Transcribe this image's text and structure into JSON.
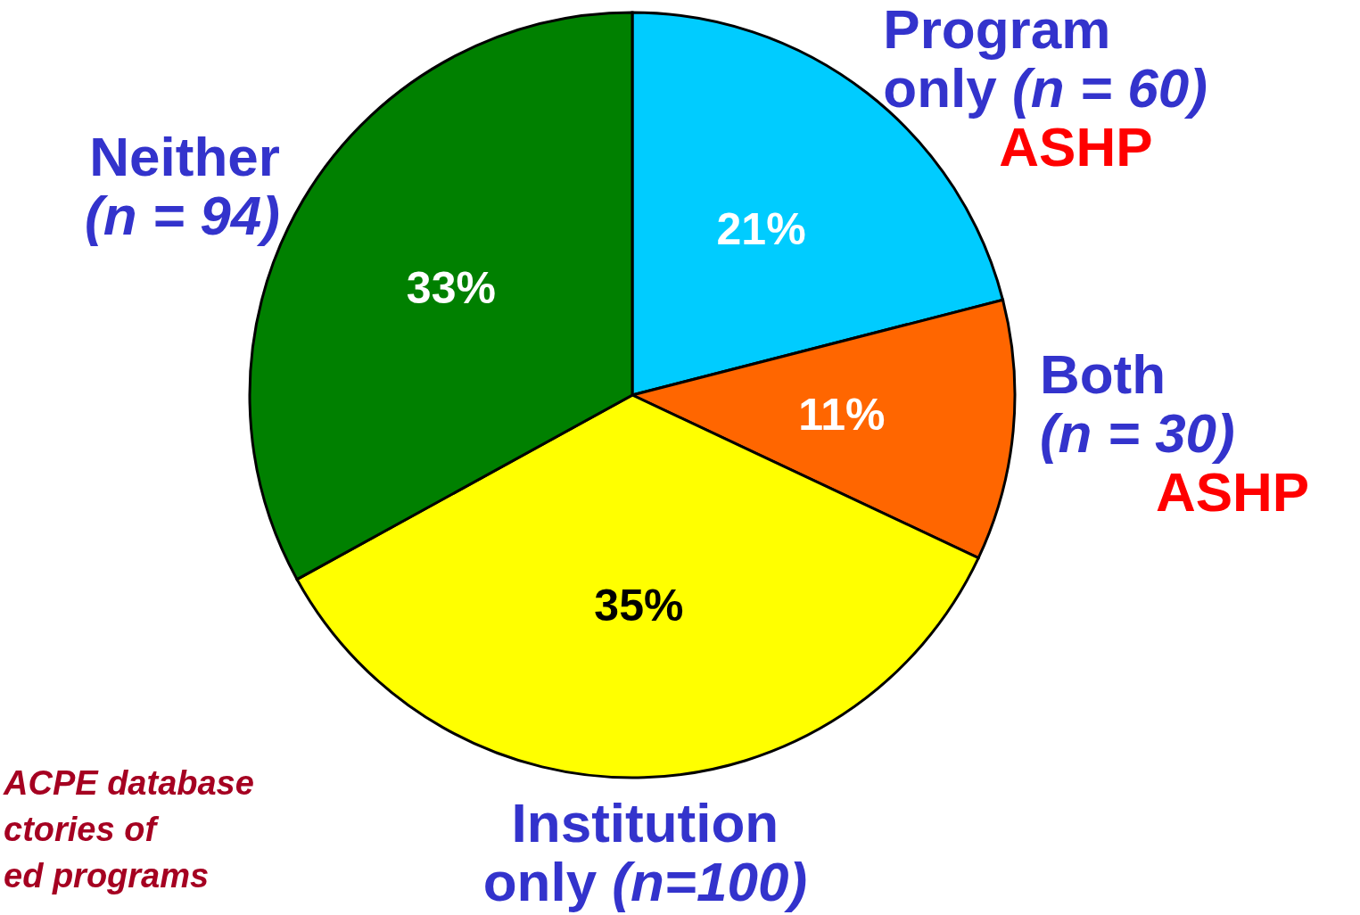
{
  "chart_data": {
    "type": "pie",
    "categories": [
      "Program only (n = 60)",
      "Both (n = 30)",
      "Institution only (n=100)",
      "Neither (n = 94)"
    ],
    "values": [
      21,
      11,
      35,
      33
    ],
    "colors": [
      "#00ccff",
      "#ff6600",
      "#ffff00",
      "#008000"
    ],
    "value_labels": [
      "21%",
      "11%",
      "35%",
      "33%"
    ],
    "annotations": [
      {
        "text": "ASHP",
        "x": "Program only (n = 60)"
      },
      {
        "text": "ASHP",
        "x": "Both (n = 30)"
      },
      "ACPE database\nctories of\ned programs"
    ]
  }
}
